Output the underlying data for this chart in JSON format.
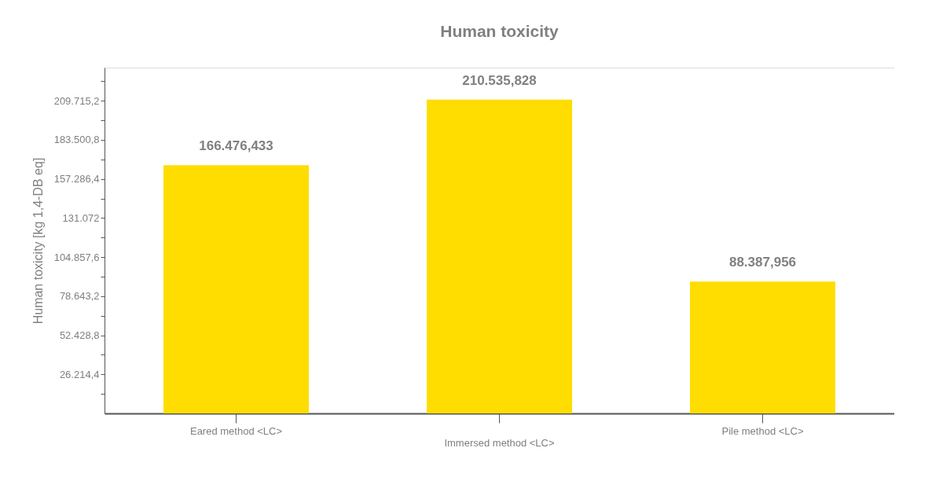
{
  "chart_data": {
    "type": "bar",
    "title": "Human toxicity",
    "ylabel": "Human toxicity [kg 1,4-DB eq]",
    "categories": [
      "Eared method  <LC>",
      "Immersed method <LC>",
      "Pile method <LC>"
    ],
    "values": [
      166476.433,
      210535.828,
      88387.956
    ],
    "value_labels": [
      "166.476,433",
      "210.535,828",
      "88.387,956"
    ],
    "color": "#ffdd00",
    "ylim": [
      0,
      232000
    ],
    "yticks": [
      {
        "value": 13107.2,
        "label": null
      },
      {
        "value": 26214.4,
        "label": "26.214,4"
      },
      {
        "value": 39321.6,
        "label": null
      },
      {
        "value": 52428.8,
        "label": "52.428,8"
      },
      {
        "value": 65536,
        "label": null
      },
      {
        "value": 78643.2,
        "label": "78.643,2"
      },
      {
        "value": 91750.4,
        "label": null
      },
      {
        "value": 104857.6,
        "label": "104.857,6"
      },
      {
        "value": 117964.8,
        "label": null
      },
      {
        "value": 131072,
        "label": "131.072"
      },
      {
        "value": 144179.2,
        "label": null
      },
      {
        "value": 157286.4,
        "label": "157.286,4"
      },
      {
        "value": 170393.6,
        "label": null
      },
      {
        "value": 183500.8,
        "label": "183.500,8"
      },
      {
        "value": 196608,
        "label": null
      },
      {
        "value": 209715.2,
        "label": "209.715,2"
      },
      {
        "value": 222822.4,
        "label": null
      }
    ],
    "grid": false
  }
}
